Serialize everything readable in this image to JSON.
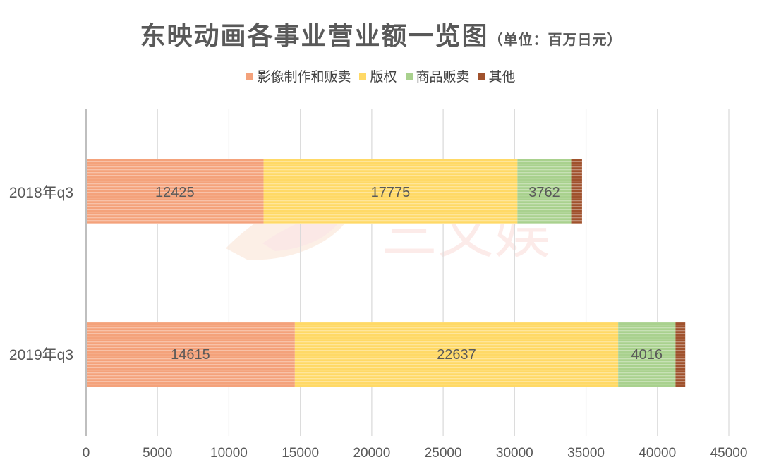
{
  "chart_data": {
    "type": "bar",
    "orientation": "horizontal",
    "stacked": true,
    "title": "东映动画各事业营业额一览图",
    "subtitle": "（单位：百万日元）",
    "categories": [
      "2018年q3",
      "2019年q3"
    ],
    "series": [
      {
        "name": "影像制作和贩卖",
        "values": [
          12425,
          14615
        ],
        "color": "#F4A27B"
      },
      {
        "name": "版权",
        "values": [
          17775,
          22637
        ],
        "color": "#FFD966"
      },
      {
        "name": "商品贩卖",
        "values": [
          3762,
          4016
        ],
        "color": "#A9D18E"
      },
      {
        "name": "其他",
        "values": [
          760,
          680
        ],
        "color": "#A0522D"
      }
    ],
    "xlim": [
      0,
      45000
    ],
    "xticks": [
      0,
      5000,
      10000,
      15000,
      20000,
      25000,
      30000,
      35000,
      40000,
      45000
    ],
    "grid": true,
    "legend_position": "top",
    "watermark": "三文娱"
  }
}
